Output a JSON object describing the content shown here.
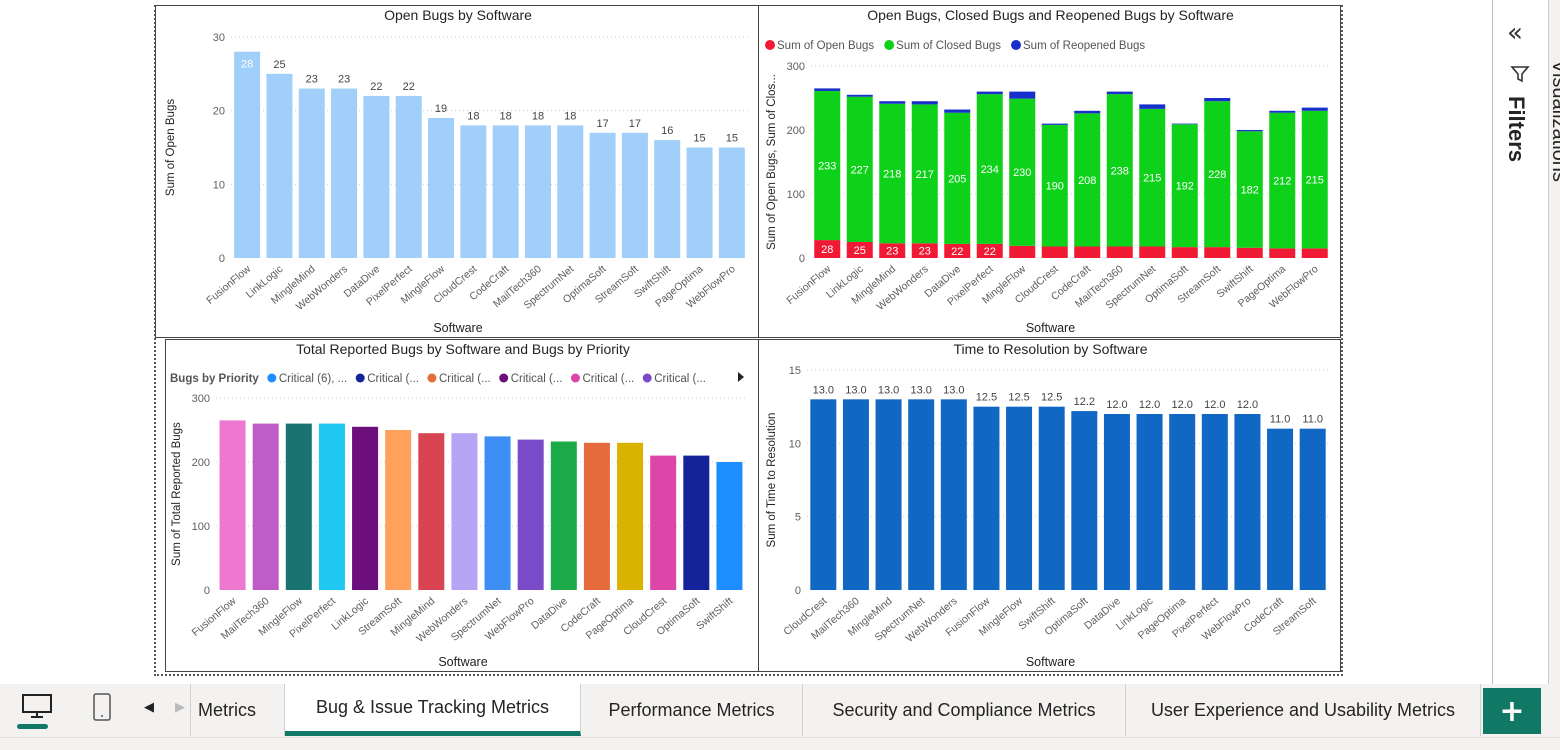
{
  "charts": [
    {
      "title": "Open Bugs by Software",
      "xlabel": "Software",
      "ylabel": "Sum of Open Bugs",
      "type": "bar",
      "ylim": [
        0,
        30
      ],
      "yticks": [
        0,
        10,
        20,
        30
      ],
      "color": "#A0CFFA",
      "categories": [
        "FusionFlow",
        "LinkLogic",
        "MingleMind",
        "WebWonders",
        "DataDive",
        "PixelPerfect",
        "MingleFlow",
        "CloudCrest",
        "CodeCraft",
        "MailTech360",
        "SpectrumNet",
        "OptimaSoft",
        "StreamSoft",
        "SwiftShift",
        "PageOptima",
        "WebFlowPro"
      ],
      "values": [
        28,
        25,
        23,
        23,
        22,
        22,
        19,
        18,
        18,
        18,
        18,
        17,
        17,
        16,
        15,
        15
      ]
    },
    {
      "title": "Open Bugs, Closed Bugs and Reopened Bugs by Software",
      "xlabel": "Software",
      "ylabel": "Sum of Open Bugs, Sum of Clos...",
      "type": "stacked-bar",
      "ylim": [
        0,
        300
      ],
      "yticks": [
        0,
        100,
        200,
        300
      ],
      "categories": [
        "FusionFlow",
        "LinkLogic",
        "MingleMind",
        "WebWonders",
        "DataDive",
        "PixelPerfect",
        "MingleFlow",
        "CloudCrest",
        "CodeCraft",
        "MailTech360",
        "SpectrumNet",
        "OptimaSoft",
        "StreamSoft",
        "SwiftShift",
        "PageOptima",
        "WebFlowPro"
      ],
      "series": [
        {
          "name": "Sum of Open Bugs",
          "color": "#F01A35",
          "values": [
            28,
            25,
            23,
            23,
            22,
            22,
            19,
            18,
            18,
            18,
            18,
            17,
            17,
            16,
            15,
            15
          ],
          "labels": [
            true,
            true,
            true,
            true,
            true,
            true,
            false,
            false,
            false,
            false,
            false,
            false,
            false,
            false,
            false,
            false
          ]
        },
        {
          "name": "Sum of Closed Bugs",
          "color": "#0ED21A",
          "values": [
            233,
            227,
            218,
            217,
            205,
            234,
            230,
            190,
            208,
            238,
            215,
            192,
            228,
            182,
            212,
            215
          ]
        },
        {
          "name": "Sum of Reopened Bugs",
          "color": "#1730CC",
          "values": [
            4,
            3,
            4,
            5,
            5,
            4,
            11,
            2,
            4,
            4,
            7,
            1,
            5,
            2,
            3,
            5
          ]
        }
      ]
    },
    {
      "title": "Total Reported Bugs by Software and Bugs by Priority",
      "xlabel": "Software",
      "ylabel": "Sum of Total Reported Bugs",
      "type": "bar",
      "ylim": [
        0,
        300
      ],
      "yticks": [
        0,
        100,
        200,
        300
      ],
      "legend": {
        "title": "Bugs by Priority",
        "items": [
          {
            "label": "Critical (6), ...",
            "color": "#1C8EFF"
          },
          {
            "label": "Critical (...",
            "color": "#14239A"
          },
          {
            "label": "Critical (...",
            "color": "#E56B3C"
          },
          {
            "label": "Critical (...",
            "color": "#6C0E7C"
          },
          {
            "label": "Critical (...",
            "color": "#DE45A8"
          },
          {
            "label": "Critical (...",
            "color": "#7A4BC8"
          }
        ]
      },
      "categories": [
        "FusionFlow",
        "MailTech360",
        "MingleFlow",
        "PixelPerfect",
        "LinkLogic",
        "StreamSoft",
        "MingleMind",
        "WebWonders",
        "SpectrumNet",
        "WebFlowPro",
        "DataDive",
        "CodeCraft",
        "PageOptima",
        "CloudCrest",
        "OptimaSoft",
        "SwiftShift"
      ],
      "values": [
        265,
        260,
        260,
        260,
        255,
        250,
        245,
        245,
        240,
        235,
        232,
        230,
        230,
        210,
        210,
        200
      ],
      "colors": [
        "#EE77D0",
        "#C05CC8",
        "#1A7370",
        "#1EC8F0",
        "#6C0E7C",
        "#FFA15A",
        "#D94452",
        "#B6A5F5",
        "#3C8EF5",
        "#7A4BC8",
        "#1DAA48",
        "#E56B3C",
        "#D9B300",
        "#DE45A8",
        "#14239A",
        "#1C8EFF"
      ]
    },
    {
      "title": "Time to Resolution by Software",
      "xlabel": "Software",
      "ylabel": "Sum of Time to Resolution",
      "type": "bar",
      "ylim": [
        0,
        15
      ],
      "yticks": [
        0,
        5,
        10,
        15
      ],
      "color": "#1168C4",
      "categories": [
        "CloudCrest",
        "MailTech360",
        "MingleMind",
        "SpectrumNet",
        "WebWonders",
        "FusionFlow",
        "MingleFlow",
        "SwiftShift",
        "OptimaSoft",
        "DataDive",
        "LinkLogic",
        "PageOptima",
        "PixelPerfect",
        "WebFlowPro",
        "CodeCraft",
        "StreamSoft"
      ],
      "values": [
        13.0,
        13.0,
        13.0,
        13.0,
        13.0,
        12.5,
        12.5,
        12.5,
        12.2,
        12.0,
        12.0,
        12.0,
        12.0,
        12.0,
        11.0,
        11.0
      ],
      "label_format": "0.0"
    }
  ],
  "right_pane": {
    "filters": "Filters",
    "visualizations": "Visualizations"
  },
  "tabs": [
    {
      "label": "Metrics"
    },
    {
      "label": "Bug & Issue Tracking Metrics",
      "active": true
    },
    {
      "label": "Performance Metrics"
    },
    {
      "label": "Security and Compliance Metrics"
    },
    {
      "label": "User Experience and Usability Metrics"
    }
  ],
  "add_page": "+"
}
